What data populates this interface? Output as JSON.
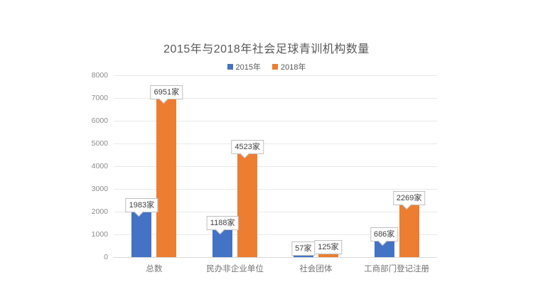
{
  "chart_data": {
    "type": "bar",
    "title": "2015年与2018年社会足球青训机构数量",
    "categories": [
      "总数",
      "民办非企业单位",
      "社会团体",
      "工商部门登记注册"
    ],
    "series": [
      {
        "name": "2015年",
        "color": "#4472C4",
        "values": [
          1983,
          1188,
          57,
          686
        ],
        "data_labels": [
          "1983家",
          "1188家",
          "57家",
          "686家"
        ]
      },
      {
        "name": "2018年",
        "color": "#ED7D31",
        "values": [
          6951,
          4523,
          125,
          2269
        ],
        "data_labels": [
          "6951家",
          "4523家",
          "125家",
          "2269家"
        ]
      }
    ],
    "unit": "家",
    "xlabel": "",
    "ylabel": "",
    "ylim": [
      0,
      8000
    ],
    "yticks": [
      0,
      1000,
      2000,
      3000,
      4000,
      5000,
      6000,
      7000,
      8000
    ],
    "grid": true,
    "legend_position": "top",
    "data_label_style": "callout",
    "colors": {
      "background": "#ffffff",
      "grid_line": "#e9e9e9",
      "axis_line": "#d9d9d9",
      "tick_text": "#8c8c8c",
      "category_text": "#737373",
      "title_text": "#595959",
      "callout_text": "#404040",
      "callout_border": "#bfbfbf"
    }
  }
}
